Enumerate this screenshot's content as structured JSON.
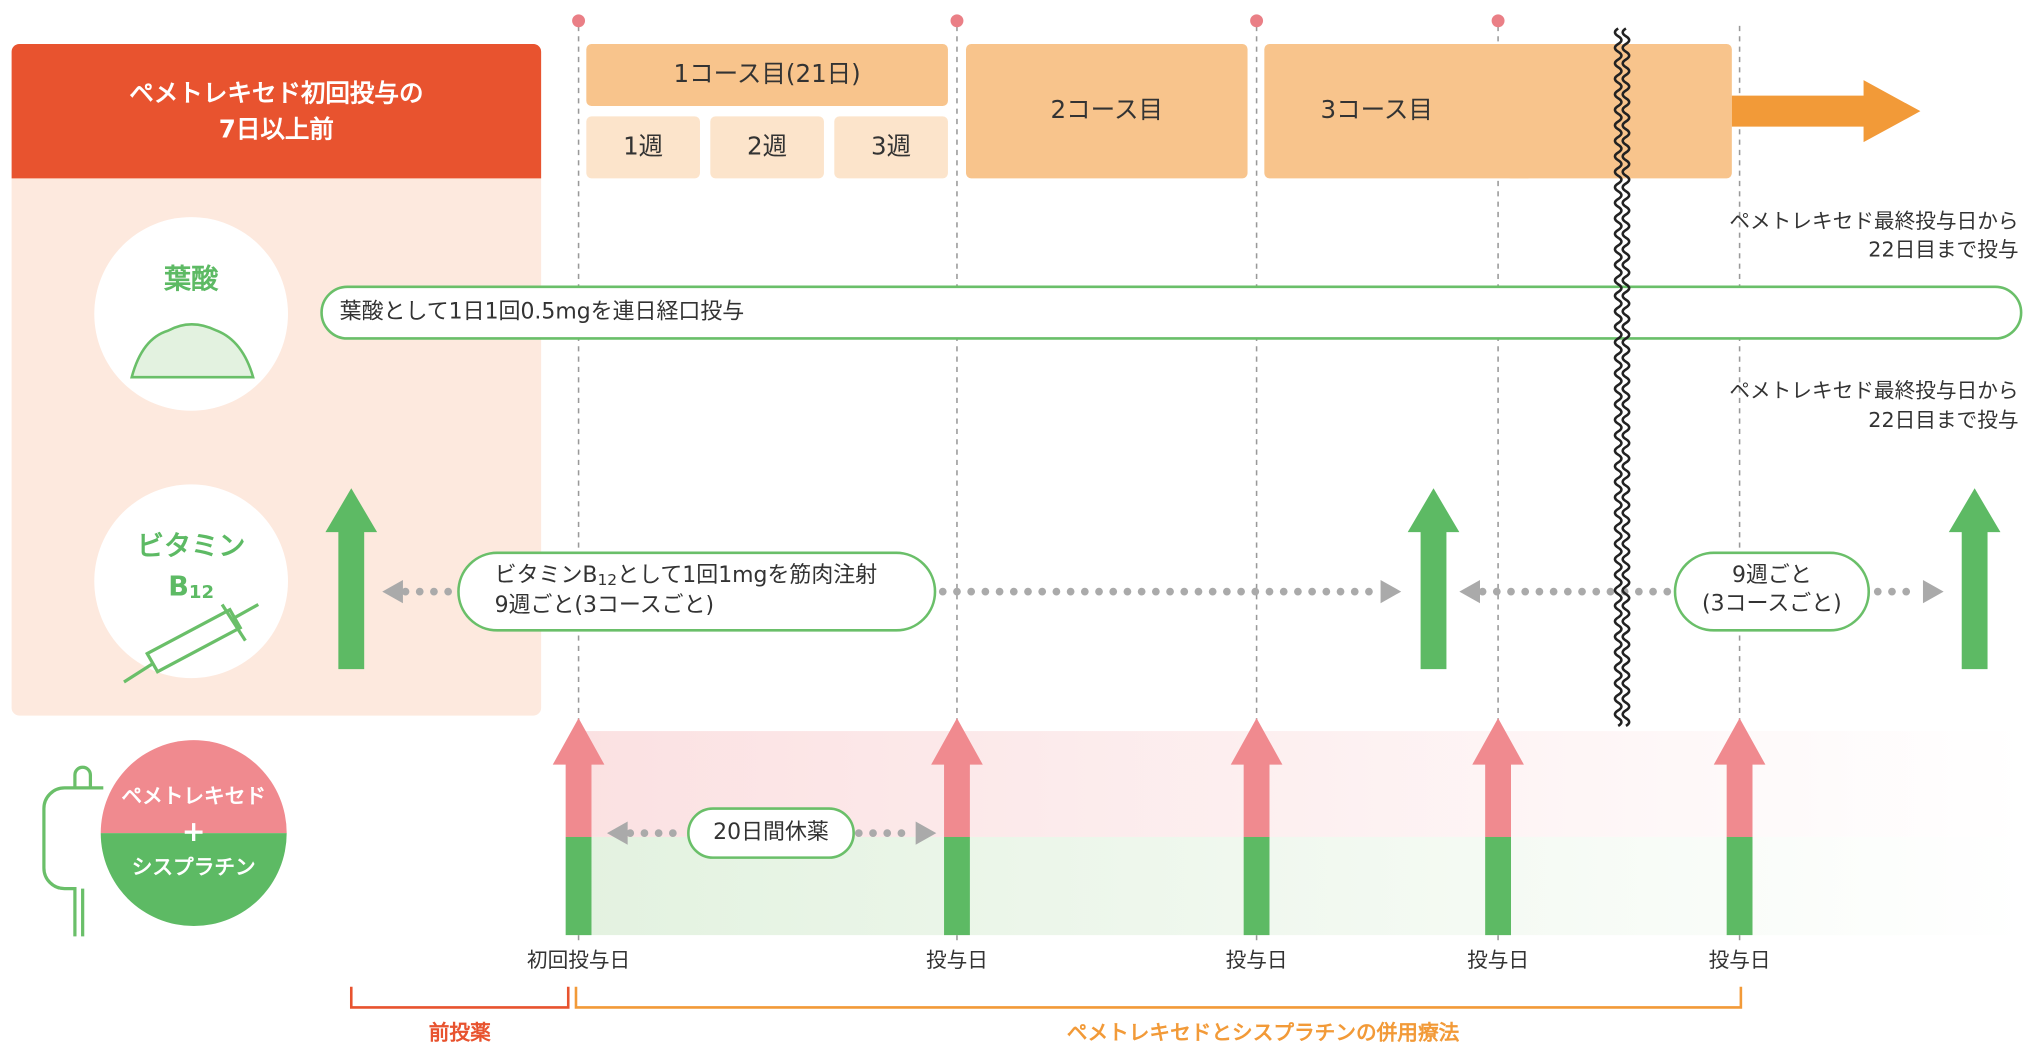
{
  "header": {
    "lines": [
      "ペメトレキセド初回投与の",
      "7日以上前"
    ]
  },
  "schedule": {
    "course1": "1コース目(21日)",
    "weeks": [
      "1週",
      "2週",
      "3週"
    ],
    "course2": "2コース目",
    "course3": "3コース目"
  },
  "notes": [
    [
      "ペメトレキセド最終投与日から",
      "22日目まで投与"
    ],
    [
      "ペメトレキセド最終投与日から",
      "22日目まで投与"
    ]
  ],
  "folic_acid": {
    "label": "葉酸",
    "instruction": "葉酸として1日1回0.5mgを連日経口投与"
  },
  "vitamin_b12": {
    "label": [
      "ビタミン",
      "B",
      "12"
    ],
    "instruction": [
      "ビタミンB",
      "12",
      "として1回1mgを筋肉注射",
      "9週ごと(3コースごと)"
    ],
    "interval": [
      "9週ごと",
      "(3コースごと)"
    ]
  },
  "regimen": {
    "drugs": [
      "ペメトレキセド",
      "+",
      "シスプラチン"
    ],
    "rest": "20日間休薬",
    "days": [
      "初回投与日",
      "投与日",
      "投与日",
      "投与日",
      "投与日"
    ]
  },
  "phases": {
    "premedication": "前投薬",
    "combination": "ペメトレキセドとシスプラチンの併用療法"
  }
}
